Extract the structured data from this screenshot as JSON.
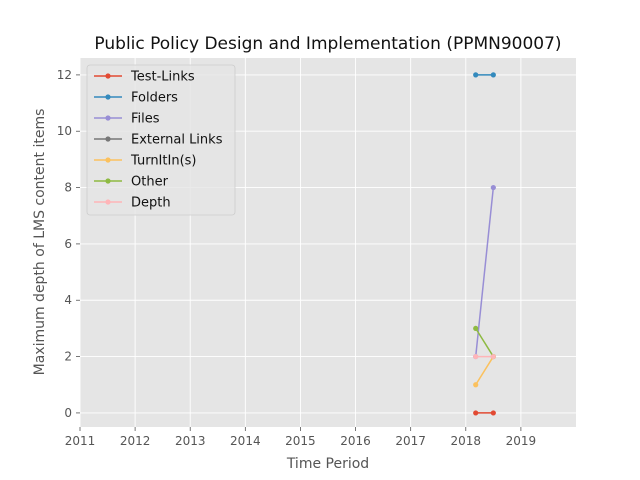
{
  "chart_data": {
    "type": "line",
    "title": "Public Policy Design and Implementation (PPMN90007)",
    "xlabel": "Time Period",
    "ylabel": "Maximum depth of LMS content items",
    "xlim": [
      2011,
      2020
    ],
    "ylim": [
      -0.5,
      12.6
    ],
    "xticks": [
      "2011",
      "2012",
      "2013",
      "2014",
      "2015",
      "2016",
      "2017",
      "2018",
      "2019"
    ],
    "yticks": [
      "0",
      "2",
      "4",
      "6",
      "8",
      "10",
      "12"
    ],
    "grid": true,
    "legend_position": "upper-left",
    "series": [
      {
        "name": "Test-Links",
        "color": "#e24a33",
        "x": [
          2018.18,
          2018.5
        ],
        "y": [
          0,
          0
        ]
      },
      {
        "name": "Folders",
        "color": "#348abd",
        "x": [
          2018.18,
          2018.5
        ],
        "y": [
          12,
          12
        ]
      },
      {
        "name": "Files",
        "color": "#988ed5",
        "x": [
          2018.18,
          2018.5
        ],
        "y": [
          2,
          8
        ]
      },
      {
        "name": "External Links",
        "color": "#777777",
        "x": [],
        "y": []
      },
      {
        "name": "TurnItIn(s)",
        "color": "#fbc15e",
        "x": [
          2018.18,
          2018.5
        ],
        "y": [
          1,
          2
        ]
      },
      {
        "name": "Other",
        "color": "#8eba42",
        "x": [
          2018.18,
          2018.5
        ],
        "y": [
          3,
          2
        ]
      },
      {
        "name": "Depth",
        "color": "#ffb5b8",
        "x": [
          2018.18,
          2018.5
        ],
        "y": [
          2,
          2
        ]
      }
    ]
  }
}
